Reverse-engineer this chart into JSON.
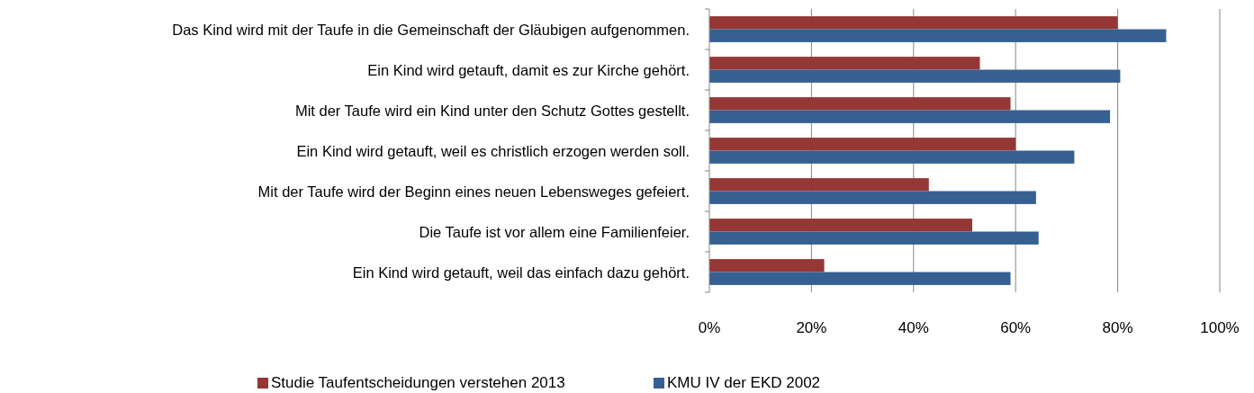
{
  "chart_data": {
    "type": "bar",
    "orientation": "horizontal",
    "categories": [
      "Das Kind wird mit der Taufe in die Gemeinschaft der Gläubigen aufgenommen.",
      "Ein Kind wird getauft, damit es zur Kirche gehört.",
      "Mit der Taufe wird ein Kind unter den Schutz Gottes gestellt.",
      "Ein Kind wird getauft, weil es christlich erzogen werden soll.",
      "Mit der Taufe wird der Beginn eines neuen Lebensweges gefeiert.",
      "Die Taufe ist vor allem eine Familienfeier.",
      "Ein Kind wird getauft, weil das einfach dazu gehört."
    ],
    "series": [
      {
        "name": "Studie Taufentscheidungen verstehen 2013",
        "color": "#953735",
        "values": [
          80,
          53,
          59,
          60,
          43,
          51.5,
          22.5
        ]
      },
      {
        "name": "KMU IV der EKD 2002",
        "color": "#366092",
        "values": [
          89.5,
          80.5,
          78.5,
          71.5,
          64,
          64.5,
          59
        ]
      }
    ],
    "xlim": [
      0,
      100
    ],
    "xticks": [
      {
        "value": 0,
        "label": "0%"
      },
      {
        "value": 20,
        "label": "20%"
      },
      {
        "value": 40,
        "label": "40%"
      },
      {
        "value": 60,
        "label": "60%"
      },
      {
        "value": 80,
        "label": "80%"
      },
      {
        "value": 100,
        "label": "100%"
      }
    ],
    "grid": "x",
    "legend": "bottom"
  }
}
